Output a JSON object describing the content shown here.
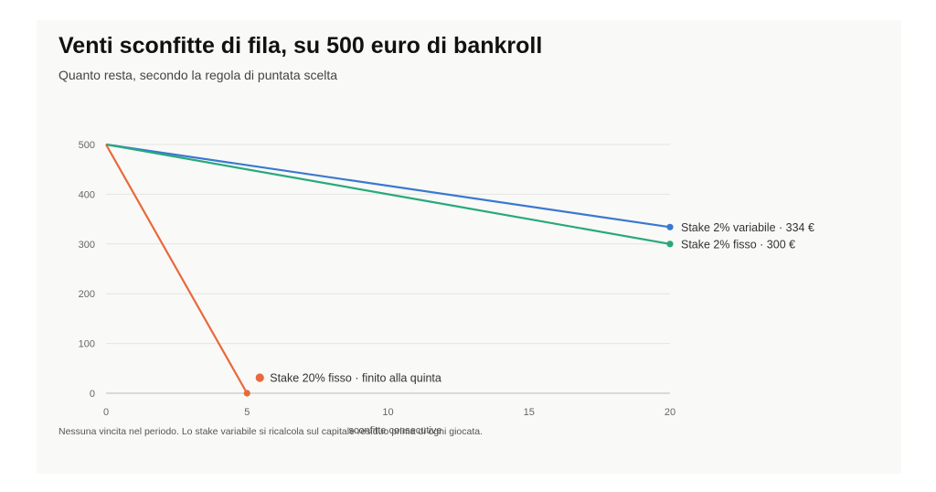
{
  "header": {
    "title": "Venti sconfitte di fila, su 500 euro di bankroll",
    "subtitle": "Quanto resta, secondo la regola di puntata scelta"
  },
  "footnote": "Nessuna vincita nel periodo. Lo stake variabile si ricalcola sul capitale residuo prima di ogni giocata.",
  "chart_data": {
    "type": "line",
    "xlabel": "sconfitte consecutive",
    "ylabel": "",
    "xlim": [
      0,
      20
    ],
    "ylim": [
      0,
      500
    ],
    "xticks": [
      0,
      5,
      10,
      15,
      20
    ],
    "yticks": [
      0,
      100,
      200,
      300,
      400,
      500
    ],
    "grid": true,
    "series": [
      {
        "key": "variabile",
        "label": "Stake 2% variabile · 334 €",
        "color": "#3a78d1",
        "x": [
          0,
          20
        ],
        "y": [
          500,
          334
        ],
        "label_anchor": "end-right"
      },
      {
        "key": "fisso2",
        "label": "Stake 2% fisso · 300 €",
        "color": "#27a97b",
        "x": [
          0,
          20
        ],
        "y": [
          500,
          300
        ],
        "label_anchor": "end-right"
      },
      {
        "key": "fisso20",
        "label": "Stake 20% fisso · finito alla quinta",
        "color": "#e8693c",
        "x": [
          0,
          5
        ],
        "y": [
          500,
          0
        ],
        "label_anchor": "near-end"
      }
    ]
  }
}
